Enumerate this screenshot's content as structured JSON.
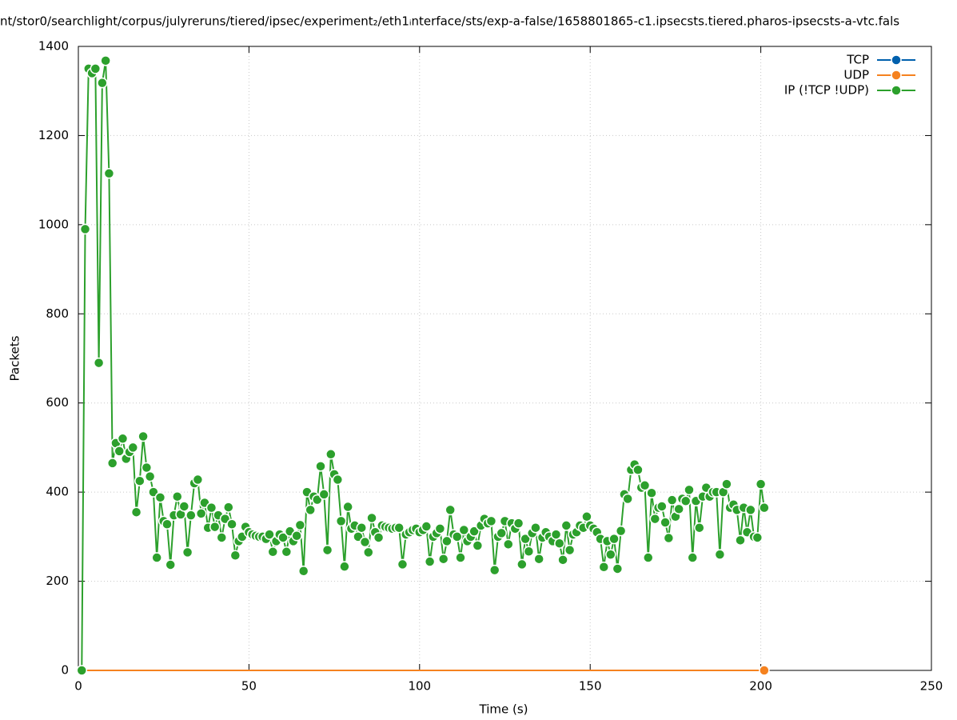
{
  "chart_data": {
    "type": "line",
    "title": "nt/stor0/searchlight/corpus/julyreruns/tiered/ipsec/experiment₂/eth1ᵢnterface/sts/exp-a-false/1658801865-c1.ipsecsts.tiered.pharos-ipsecsts-a-vtc.fals",
    "x_label": "Time (s)",
    "y_label": "Packets",
    "xlim": [
      0,
      250
    ],
    "xticks": [
      0,
      50,
      100,
      150,
      200,
      250
    ],
    "ylim": [
      0,
      1400
    ],
    "yticks": [
      0,
      200,
      400,
      600,
      800,
      1000,
      1200,
      1400
    ],
    "grid": true,
    "legend": "top-right",
    "series": [
      {
        "name": "TCP",
        "color": "#0060ad",
        "x": [
          1,
          201
        ],
        "values": [
          0,
          0
        ]
      },
      {
        "name": "UDP",
        "color": "#f5821f",
        "x": [
          1,
          201
        ],
        "values": [
          0,
          0
        ]
      },
      {
        "name": "IP (!TCP  !UDP)",
        "color": "#2ca02c",
        "x": [
          1,
          2,
          3,
          4,
          5,
          6,
          7,
          8,
          9,
          10,
          11,
          12,
          13,
          14,
          15,
          16,
          17,
          18,
          19,
          20,
          21,
          22,
          23,
          24,
          25,
          26,
          27,
          28,
          29,
          30,
          31,
          32,
          33,
          34,
          35,
          36,
          37,
          38,
          39,
          40,
          41,
          42,
          43,
          44,
          45,
          46,
          47,
          48,
          49,
          50,
          51,
          52,
          53,
          54,
          55,
          56,
          57,
          58,
          59,
          60,
          61,
          62,
          63,
          64,
          65,
          66,
          67,
          68,
          69,
          70,
          71,
          72,
          73,
          74,
          75,
          76,
          77,
          78,
          79,
          80,
          81,
          82,
          83,
          84,
          85,
          86,
          87,
          88,
          89,
          90,
          91,
          92,
          93,
          94,
          95,
          96,
          97,
          98,
          99,
          100,
          101,
          102,
          103,
          104,
          105,
          106,
          107,
          108,
          109,
          110,
          111,
          112,
          113,
          114,
          115,
          116,
          117,
          118,
          119,
          120,
          121,
          122,
          123,
          124,
          125,
          126,
          127,
          128,
          129,
          130,
          131,
          132,
          133,
          134,
          135,
          136,
          137,
          138,
          139,
          140,
          141,
          142,
          143,
          144,
          145,
          146,
          147,
          148,
          149,
          150,
          151,
          152,
          153,
          154,
          155,
          156,
          157,
          158,
          159,
          160,
          161,
          162,
          163,
          164,
          165,
          166,
          167,
          168,
          169,
          170,
          171,
          172,
          173,
          174,
          175,
          176,
          177,
          178,
          179,
          180,
          181,
          182,
          183,
          184,
          185,
          186,
          187,
          188,
          189,
          190,
          191,
          192,
          193,
          194,
          195,
          196,
          197,
          198,
          199,
          200,
          201
        ],
        "values": [
          0,
          990,
          1350,
          1340,
          1350,
          690,
          1318,
          1368,
          1115,
          465,
          510,
          492,
          520,
          475,
          490,
          500,
          355,
          425,
          525,
          455,
          435,
          400,
          253,
          388,
          335,
          328,
          237,
          348,
          390,
          350,
          368,
          265,
          348,
          420,
          428,
          352,
          376,
          320,
          365,
          322,
          348,
          298,
          340,
          366,
          328,
          258,
          290,
          300,
          322,
          310,
          305,
          302,
          300,
          300,
          295,
          305,
          266,
          290,
          305,
          298,
          266,
          312,
          290,
          302,
          326,
          223,
          400,
          360,
          390,
          383,
          458,
          395,
          270,
          485,
          440,
          428,
          335,
          233,
          367,
          318,
          325,
          300,
          320,
          288,
          265,
          342,
          310,
          298,
          325,
          322,
          320,
          318,
          320,
          320,
          238,
          305,
          310,
          315,
          318,
          310,
          315,
          323,
          244,
          300,
          308,
          318,
          250,
          290,
          360,
          305,
          300,
          253,
          315,
          290,
          300,
          312,
          280,
          325,
          340,
          330,
          335,
          225,
          300,
          308,
          335,
          283,
          330,
          318,
          330,
          238,
          295,
          267,
          308,
          320,
          250,
          298,
          310,
          300,
          290,
          305,
          285,
          248,
          325,
          270,
          305,
          310,
          325,
          320,
          345,
          325,
          318,
          310,
          295,
          232,
          290,
          260,
          295,
          228,
          313,
          395,
          385,
          450,
          462,
          450,
          410,
          415,
          253,
          398,
          340,
          365,
          368,
          332,
          297,
          382,
          345,
          362,
          385,
          380,
          405,
          253,
          380,
          320,
          390,
          410,
          390,
          400,
          400,
          260,
          400,
          418,
          365,
          372,
          360,
          292,
          365,
          310,
          360,
          300,
          298,
          418,
          365
        ]
      }
    ]
  }
}
